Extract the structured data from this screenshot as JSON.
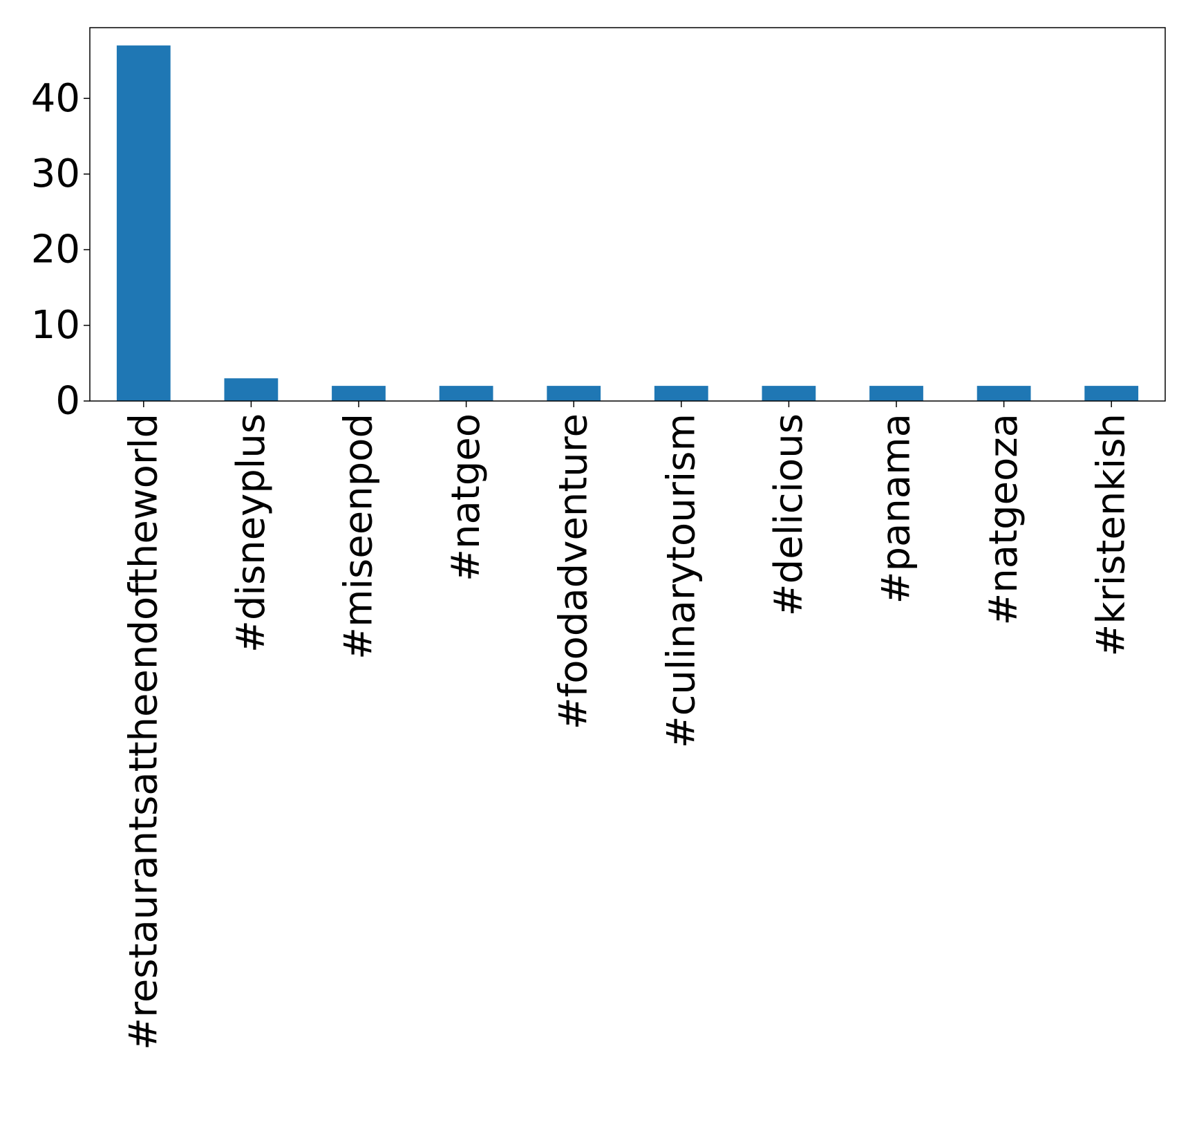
{
  "chart_data": {
    "type": "bar",
    "title": "",
    "xlabel": "",
    "ylabel": "",
    "categories": [
      "#restaurantsattheendoftheworld",
      "#disneyplus",
      "#miseenpod",
      "#natgeo",
      "#foodadventure",
      "#culinarytourism",
      "#delicious",
      "#panama",
      "#natgeoza",
      "#kristenkish"
    ],
    "values": [
      47,
      3,
      2,
      2,
      2,
      2,
      2,
      2,
      2,
      2
    ],
    "ylim": [
      0,
      49.35
    ],
    "yticks": [
      0,
      10,
      20,
      30,
      40
    ],
    "ytick_labels": [
      "0",
      "10",
      "20",
      "30",
      "40"
    ],
    "bar_color": "#1f77b4",
    "grid": false,
    "legend": "none"
  }
}
